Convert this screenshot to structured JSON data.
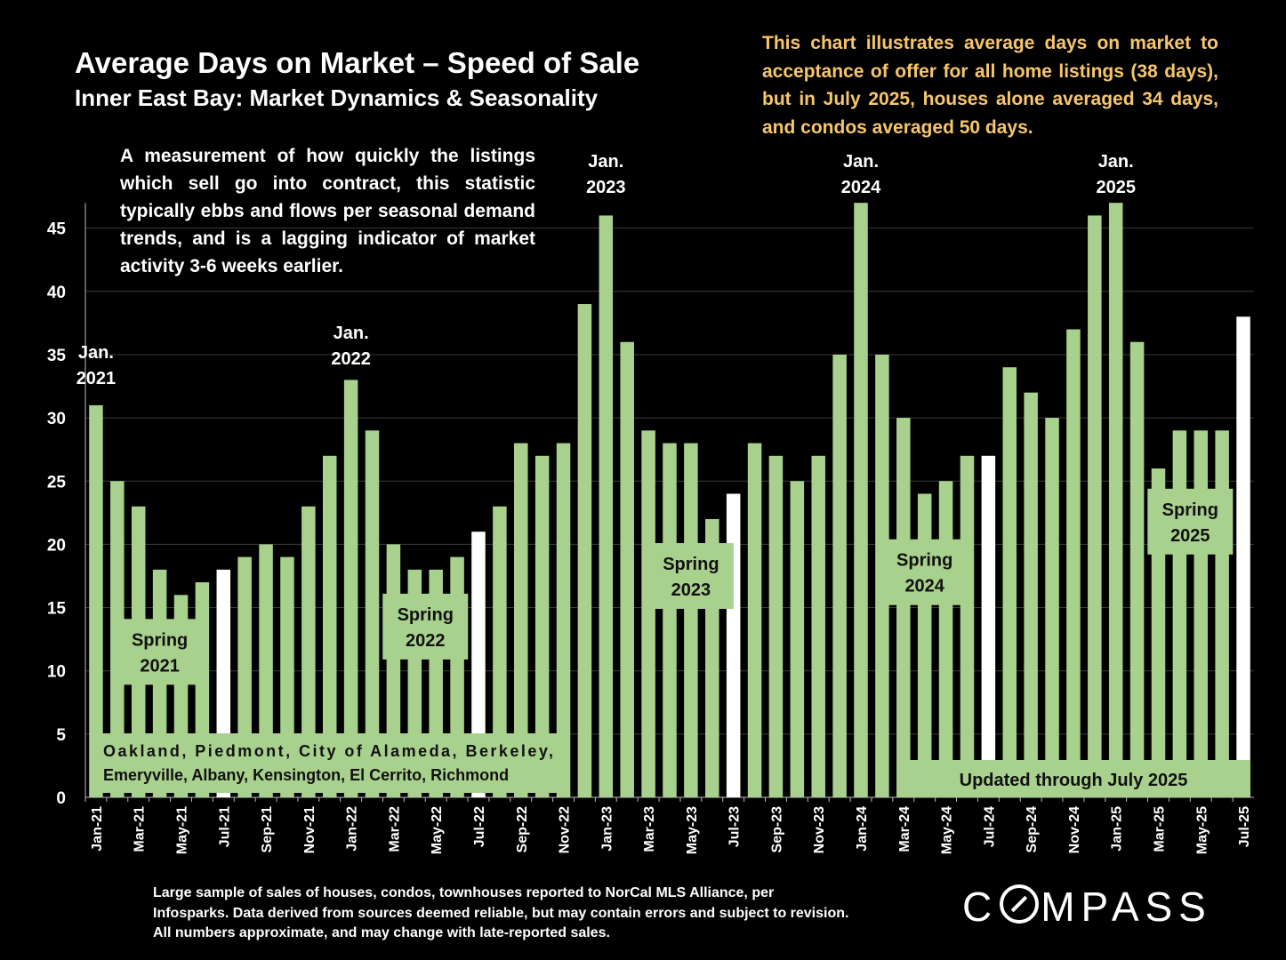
{
  "title": "Average Days on Market – Speed of Sale",
  "subtitle": "Inner East Bay: Market Dynamics & Seasonality",
  "note": "This chart illustrates average days on market to acceptance of offer for all home listings (38 days), but in July 2025, houses alone averaged 34 days, and condos averaged 50 days.",
  "description": "A measurement of how quickly the listings which sell go into contract, this statistic typically ebbs and flows per seasonal demand trends, and is a lagging indicator of market activity 3-6 weeks earlier.",
  "footer": "Large sample of sales of houses, condos, townhouses reported to NorCal MLS Alliance, per Infosparks. Data derived from sources deemed reliable, but may contain errors and subject to revision. All numbers approximate, and may change with late-reported sales.",
  "logo_text": "COMPASS",
  "colors": {
    "bar": "#a9d18e",
    "highlight": "#ffffff",
    "background": "#000000",
    "note": "#f7c66b"
  },
  "chart_data": {
    "type": "bar",
    "title": "Average Days on Market – Speed of Sale",
    "ylim": [
      0,
      47
    ],
    "yticks": [
      0,
      5,
      10,
      15,
      20,
      25,
      30,
      35,
      40,
      45
    ],
    "grid": true,
    "categories": [
      "Jan-21",
      "Feb-21",
      "Mar-21",
      "Apr-21",
      "May-21",
      "Jun-21",
      "Jul-21",
      "Aug-21",
      "Sep-21",
      "Oct-21",
      "Nov-21",
      "Dec-21",
      "Jan-22",
      "Feb-22",
      "Mar-22",
      "Apr-22",
      "May-22",
      "Jun-22",
      "Jul-22",
      "Aug-22",
      "Sep-22",
      "Oct-22",
      "Nov-22",
      "Dec-22",
      "Jan-23",
      "Feb-23",
      "Mar-23",
      "Apr-23",
      "May-23",
      "Jun-23",
      "Jul-23",
      "Aug-23",
      "Sep-23",
      "Oct-23",
      "Nov-23",
      "Dec-23",
      "Jan-24",
      "Feb-24",
      "Mar-24",
      "Apr-24",
      "May-24",
      "Jun-24",
      "Jul-24",
      "Aug-24",
      "Sep-24",
      "Oct-24",
      "Nov-24",
      "Dec-24",
      "Jan-25",
      "Feb-25",
      "Mar-25",
      "Apr-25",
      "May-25",
      "Jun-25",
      "Jul-25"
    ],
    "values": [
      31,
      25,
      23,
      18,
      16,
      17,
      18,
      19,
      20,
      19,
      23,
      27,
      33,
      29,
      20,
      18,
      18,
      19,
      21,
      23,
      28,
      27,
      28,
      39,
      46,
      36,
      29,
      28,
      28,
      22,
      24,
      28,
      27,
      25,
      27,
      35,
      48,
      35,
      30,
      24,
      25,
      27,
      27,
      34,
      32,
      30,
      37,
      46,
      48,
      36,
      26,
      29,
      29,
      29,
      38
    ],
    "highlight_categories": [
      "Jul-21",
      "Jul-22",
      "Jul-23",
      "Jul-24",
      "Jul-25"
    ],
    "annotations": [
      {
        "label": "Jan.\n2021",
        "category": "Jan-21"
      },
      {
        "label": "Jan.\n2022",
        "category": "Jan-22"
      },
      {
        "label": "Jan.\n2023",
        "category": "Jan-23"
      },
      {
        "label": "Jan.\n2024",
        "category": "Jan-24"
      },
      {
        "label": "Jan.\n2025",
        "category": "Jan-25"
      }
    ],
    "season_labels": [
      {
        "label": "Spring\n2021",
        "categories": [
          "Mar-21",
          "May-21"
        ],
        "y": 11.5
      },
      {
        "label": "Spring\n2022",
        "categories": [
          "Mar-22",
          "Jun-22"
        ],
        "y": 13.5
      },
      {
        "label": "Spring\n2023",
        "categories": [
          "Apr-23",
          "Jun-23"
        ],
        "y": 17.5
      },
      {
        "label": "Spring\n2024",
        "categories": [
          "Mar-24",
          "May-24"
        ],
        "y": 17.8
      },
      {
        "label": "Spring\n2025",
        "categories": [
          "Mar-25",
          "Jun-25"
        ],
        "y": 21.8
      }
    ],
    "regions_text": "Oakland, Piedmont, City of Alameda, Berkeley, Emeryville, Albany, Kensington, El Cerrito, Richmond",
    "updated_text": "Updated through July 2025"
  }
}
